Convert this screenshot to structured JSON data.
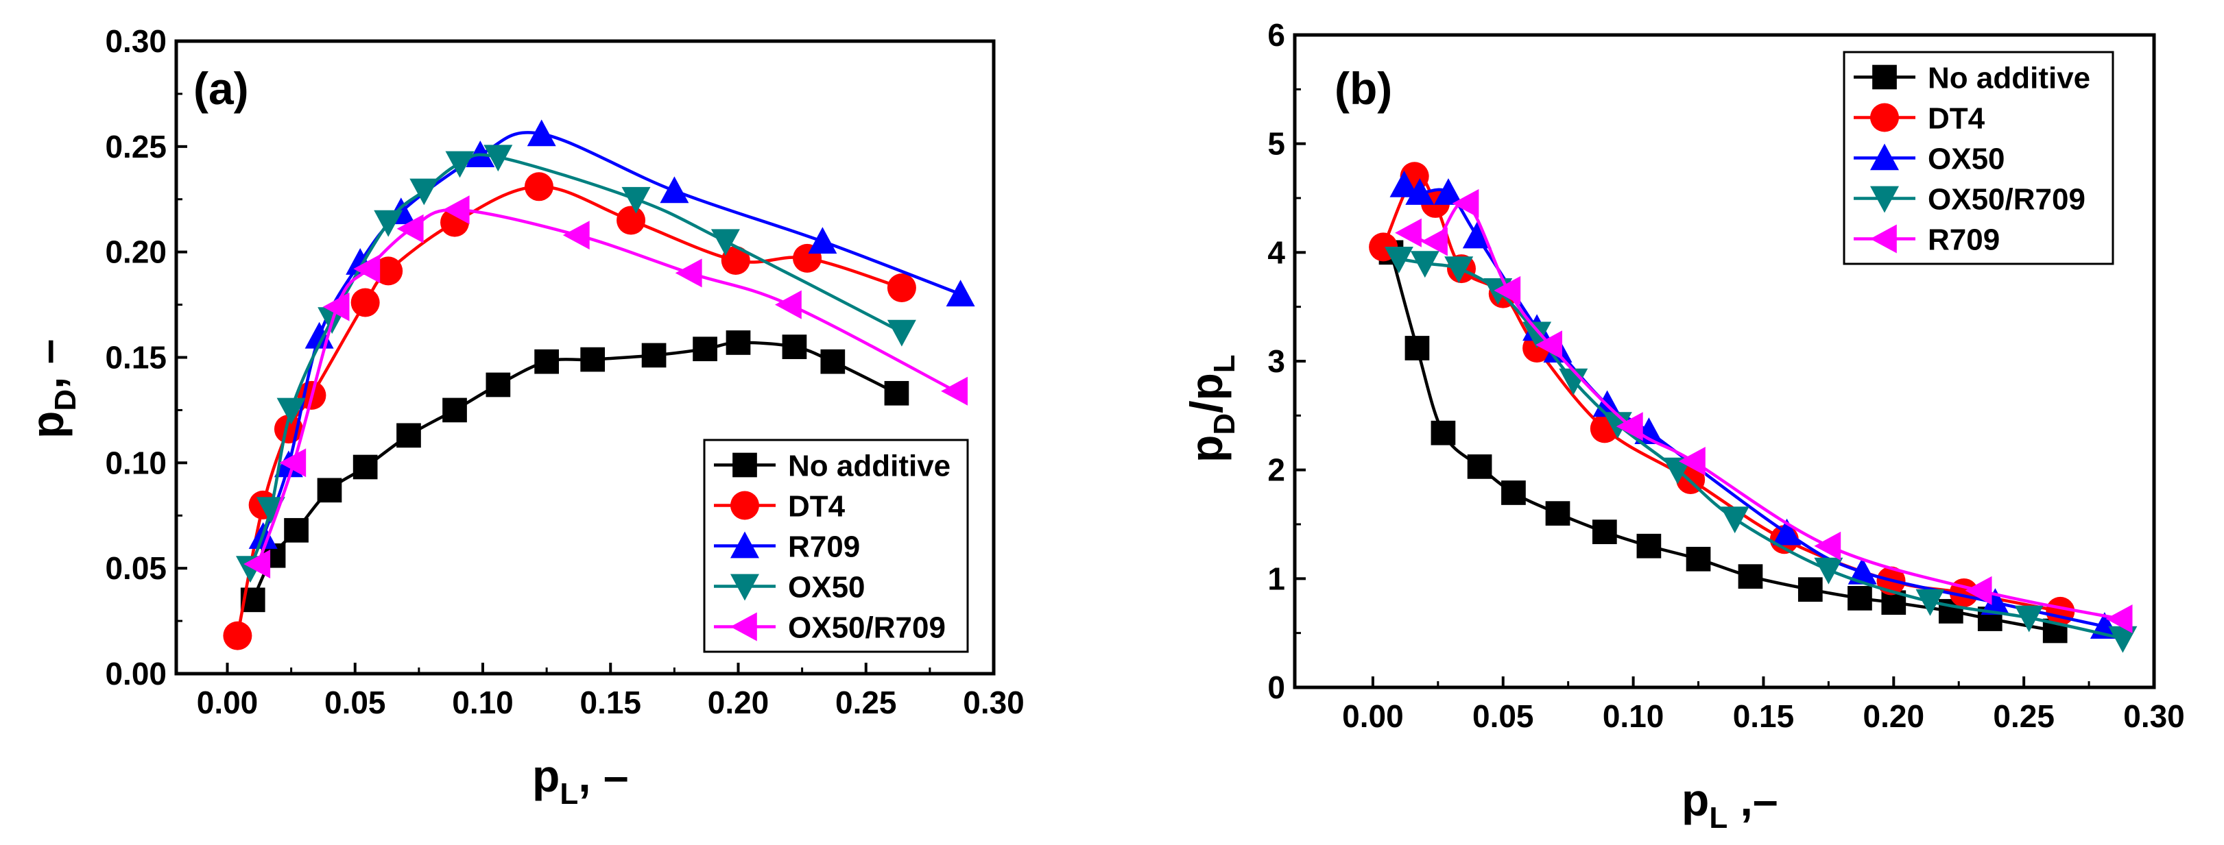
{
  "chart_data": [
    {
      "type": "line",
      "panel_label": "(a)",
      "xlabel_main": "p",
      "xlabel_sub": "L",
      "xlabel_suffix": ", –",
      "ylabel_main": "p",
      "ylabel_sub": "D",
      "ylabel_suffix": ", –",
      "xlim": [
        -0.02,
        0.3
      ],
      "ylim": [
        0.0,
        0.3
      ],
      "xticks": [
        0.0,
        0.05,
        0.1,
        0.15,
        0.2,
        0.25,
        0.3
      ],
      "xtick_labels": [
        "0.00",
        "0.05",
        "0.10",
        "0.15",
        "0.20",
        "0.25",
        "0.30"
      ],
      "yticks": [
        0.0,
        0.05,
        0.1,
        0.15,
        0.2,
        0.25,
        0.3
      ],
      "ytick_labels": [
        "0.00",
        "0.05",
        "0.10",
        "0.15",
        "0.20",
        "0.25",
        "0.30"
      ],
      "legend_position": "bottom-right",
      "series": [
        {
          "name": "No additive",
          "color": "#000000",
          "marker": "square",
          "x": [
            0.01,
            0.018,
            0.027,
            0.04,
            0.054,
            0.071,
            0.089,
            0.106,
            0.125,
            0.143,
            0.167,
            0.187,
            0.2,
            0.222,
            0.237,
            0.262
          ],
          "y": [
            0.035,
            0.056,
            0.068,
            0.087,
            0.098,
            0.113,
            0.125,
            0.137,
            0.148,
            0.149,
            0.151,
            0.154,
            0.157,
            0.155,
            0.148,
            0.133
          ]
        },
        {
          "name": "DT4",
          "color": "#ff0000",
          "marker": "circle",
          "x": [
            0.004,
            0.014,
            0.024,
            0.033,
            0.054,
            0.063,
            0.089,
            0.122,
            0.158,
            0.199,
            0.227,
            0.264
          ],
          "y": [
            0.018,
            0.08,
            0.116,
            0.132,
            0.176,
            0.191,
            0.214,
            0.231,
            0.215,
            0.196,
            0.197,
            0.183
          ]
        },
        {
          "name": "R709",
          "color": "#0000ff",
          "marker": "triangle-up",
          "x": [
            0.014,
            0.024,
            0.036,
            0.052,
            0.068,
            0.099,
            0.123,
            0.175,
            0.233,
            0.287
          ],
          "y": [
            0.065,
            0.099,
            0.16,
            0.195,
            0.219,
            0.246,
            0.256,
            0.229,
            0.205,
            0.18
          ]
        },
        {
          "name": "OX50",
          "color": "#008080",
          "marker": "triangle-down",
          "x": [
            0.009,
            0.017,
            0.025,
            0.041,
            0.063,
            0.077,
            0.091,
            0.106,
            0.16,
            0.195,
            0.264
          ],
          "y": [
            0.05,
            0.078,
            0.125,
            0.168,
            0.214,
            0.229,
            0.242,
            0.245,
            0.225,
            0.205,
            0.162
          ]
        },
        {
          "name": "OX50/R709",
          "color": "#ff00ff",
          "marker": "triangle-left",
          "x": [
            0.012,
            0.026,
            0.043,
            0.055,
            0.072,
            0.09,
            0.137,
            0.181,
            0.22,
            0.285
          ],
          "y": [
            0.052,
            0.1,
            0.174,
            0.192,
            0.211,
            0.22,
            0.208,
            0.19,
            0.175,
            0.134
          ]
        }
      ]
    },
    {
      "type": "line",
      "panel_label": "(b)",
      "xlabel_main": "p",
      "xlabel_sub": "L",
      "xlabel_suffix": " ,–",
      "ylabel_main": "p",
      "ylabel_sub1": "D",
      "ylabel_mid": "/p",
      "ylabel_sub2": "L",
      "xlim": [
        -0.03,
        0.3
      ],
      "ylim": [
        0,
        6
      ],
      "xticks": [
        0.0,
        0.05,
        0.1,
        0.15,
        0.2,
        0.25,
        0.3
      ],
      "xtick_labels": [
        "0.00",
        "0.05",
        "0.10",
        "0.15",
        "0.20",
        "0.25",
        "0.30"
      ],
      "yticks": [
        0,
        1,
        2,
        3,
        4,
        5,
        6
      ],
      "ytick_labels": [
        "0",
        "1",
        "2",
        "3",
        "4",
        "5",
        "6"
      ],
      "legend_position": "top-right",
      "series": [
        {
          "name": "No additive",
          "color": "#000000",
          "marker": "square",
          "x": [
            0.007,
            0.017,
            0.027,
            0.041,
            0.054,
            0.071,
            0.089,
            0.106,
            0.125,
            0.145,
            0.168,
            0.187,
            0.2,
            0.222,
            0.237,
            0.262
          ],
          "y": [
            4.0,
            3.12,
            2.34,
            2.03,
            1.79,
            1.6,
            1.43,
            1.3,
            1.18,
            1.02,
            0.9,
            0.82,
            0.78,
            0.7,
            0.63,
            0.52
          ]
        },
        {
          "name": "DT4",
          "color": "#ff0000",
          "marker": "circle",
          "x": [
            0.004,
            0.016,
            0.024,
            0.034,
            0.05,
            0.063,
            0.089,
            0.122,
            0.158,
            0.199,
            0.227,
            0.264
          ],
          "y": [
            4.05,
            4.7,
            4.45,
            3.85,
            3.62,
            3.12,
            2.38,
            1.91,
            1.36,
            0.98,
            0.87,
            0.7
          ]
        },
        {
          "name": "OX50",
          "color": "#0000ff",
          "marker": "triangle-up",
          "x": [
            0.012,
            0.018,
            0.029,
            0.04,
            0.063,
            0.071,
            0.09,
            0.106,
            0.159,
            0.188,
            0.239,
            0.281
          ],
          "y": [
            4.62,
            4.55,
            4.55,
            4.15,
            3.3,
            3.1,
            2.6,
            2.35,
            1.42,
            1.06,
            0.78,
            0.56
          ]
        },
        {
          "name": "OX50/R709",
          "color": "#008080",
          "marker": "triangle-down",
          "x": [
            0.01,
            0.02,
            0.033,
            0.048,
            0.063,
            0.077,
            0.094,
            0.117,
            0.139,
            0.175,
            0.214,
            0.252,
            0.288
          ],
          "y": [
            3.94,
            3.9,
            3.85,
            3.65,
            3.25,
            2.82,
            2.42,
            2.0,
            1.55,
            1.08,
            0.79,
            0.64,
            0.45
          ]
        },
        {
          "name": "R709",
          "color": "#ff00ff",
          "marker": "triangle-left",
          "x": [
            0.014,
            0.024,
            0.036,
            0.052,
            0.068,
            0.099,
            0.123,
            0.175,
            0.233,
            0.287
          ],
          "y": [
            4.18,
            4.1,
            4.45,
            3.65,
            3.15,
            2.4,
            2.08,
            1.3,
            0.89,
            0.63
          ]
        }
      ]
    }
  ]
}
